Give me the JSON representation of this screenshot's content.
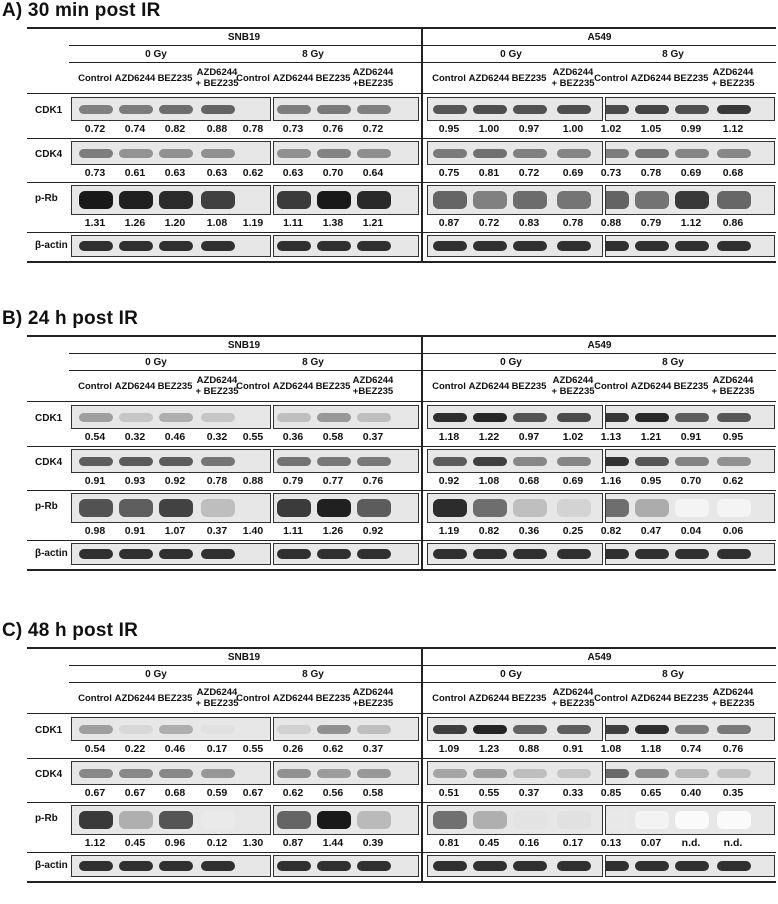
{
  "cell_lines": [
    "SNB19",
    "A549"
  ],
  "doses": [
    "0 Gy",
    "8 Gy"
  ],
  "treatments": [
    "Control",
    "AZD6244",
    "BEZ235",
    "AZD6244\n+ BEZ235"
  ],
  "treatments_snb19_8gy_last": "AZD6244\n+BEZ235",
  "panels": [
    {
      "title": "A)  30 min post IR",
      "rows": [
        {
          "name": "CDK1",
          "values": [
            "0.72",
            "0.74",
            "0.82",
            "0.88",
            "0.78",
            "0.73",
            "0.76",
            "0.72",
            "0.95",
            "1.00",
            "0.97",
            "1.00",
            "1.02",
            "1.05",
            "0.99",
            "1.12"
          ]
        },
        {
          "name": "CDK4",
          "values": [
            "0.73",
            "0.61",
            "0.63",
            "0.63",
            "0.62",
            "0.63",
            "0.70",
            "0.64",
            "0.75",
            "0.81",
            "0.72",
            "0.69",
            "0.73",
            "0.78",
            "0.69",
            "0.68"
          ]
        },
        {
          "name": "p-Rb",
          "values": [
            "1.31",
            "1.26",
            "1.20",
            "1.08",
            "1.19",
            "1.11",
            "1.38",
            "1.21",
            "0.87",
            "0.72",
            "0.83",
            "0.78",
            "0.88",
            "0.79",
            "1.12",
            "0.86"
          ]
        },
        {
          "name": "β-actin",
          "values": []
        }
      ]
    },
    {
      "title": "B)  24 h post IR",
      "rows": [
        {
          "name": "CDK1",
          "values": [
            "0.54",
            "0.32",
            "0.46",
            "0.32",
            "0.55",
            "0.36",
            "0.58",
            "0.37",
            "1.18",
            "1.22",
            "0.97",
            "1.02",
            "1.13",
            "1.21",
            "0.91",
            "0.95"
          ]
        },
        {
          "name": "CDK4",
          "values": [
            "0.91",
            "0.93",
            "0.92",
            "0.78",
            "0.88",
            "0.79",
            "0.77",
            "0.76",
            "0.92",
            "1.08",
            "0.68",
            "0.69",
            "1.16",
            "0.95",
            "0.70",
            "0.62"
          ]
        },
        {
          "name": "p-Rb",
          "values": [
            "0.98",
            "0.91",
            "1.07",
            "0.37",
            "1.40",
            "1.11",
            "1.26",
            "0.92",
            "1.19",
            "0.82",
            "0.36",
            "0.25",
            "0.82",
            "0.47",
            "0.04",
            "0.06"
          ]
        },
        {
          "name": "β-actin",
          "values": []
        }
      ]
    },
    {
      "title": "C)  48 h post IR",
      "rows": [
        {
          "name": "CDK1",
          "values": [
            "0.54",
            "0.22",
            "0.46",
            "0.17",
            "0.55",
            "0.26",
            "0.62",
            "0.37",
            "1.09",
            "1.23",
            "0.88",
            "0.91",
            "1.08",
            "1.18",
            "0.74",
            "0.76"
          ]
        },
        {
          "name": "CDK4",
          "values": [
            "0.67",
            "0.67",
            "0.68",
            "0.59",
            "0.67",
            "0.62",
            "0.56",
            "0.58",
            "0.51",
            "0.55",
            "0.37",
            "0.33",
            "0.85",
            "0.65",
            "0.40",
            "0.35"
          ]
        },
        {
          "name": "p-Rb",
          "values": [
            "1.12",
            "0.45",
            "0.96",
            "0.12",
            "1.30",
            "0.87",
            "1.44",
            "0.39",
            "0.81",
            "0.45",
            "0.16",
            "0.17",
            "0.13",
            "0.07",
            "n.d.",
            "n.d."
          ]
        },
        {
          "name": "β-actin",
          "values": []
        }
      ]
    }
  ]
}
